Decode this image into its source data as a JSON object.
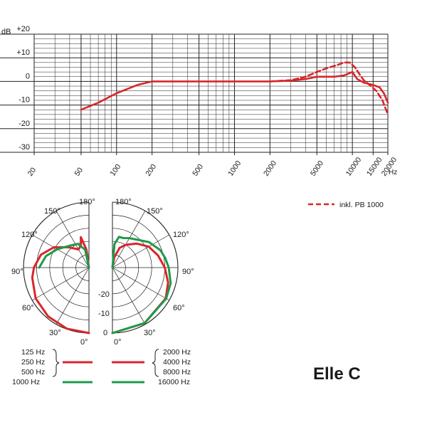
{
  "chart_data": [
    {
      "type": "line",
      "x_scale": "log",
      "xlim": [
        20,
        20000
      ],
      "ylim": [
        -30,
        20
      ],
      "x_unit": "Hz",
      "y_unit": "dB",
      "grid": true,
      "x_ticks": [
        {
          "v": 20,
          "label": "20"
        },
        {
          "v": 50,
          "label": "50"
        },
        {
          "v": 100,
          "label": "100"
        },
        {
          "v": 200,
          "label": "200"
        },
        {
          "v": 500,
          "label": "500"
        },
        {
          "v": 1000,
          "label": "1000"
        },
        {
          "v": 2000,
          "label": "2000"
        },
        {
          "v": 5000,
          "label": "5000"
        },
        {
          "v": 10000,
          "label": "10000"
        },
        {
          "v": 15000,
          "label": "15000"
        },
        {
          "v": 20000,
          "label": "20000"
        }
      ],
      "y_ticks": [
        {
          "v": 20,
          "label": "+20"
        },
        {
          "v": 10,
          "label": "+10"
        },
        {
          "v": 0,
          "label": "0"
        },
        {
          "v": -10,
          "label": "-10"
        },
        {
          "v": -20,
          "label": "-20"
        },
        {
          "v": -30,
          "label": "-30"
        }
      ],
      "series": [
        {
          "name": "",
          "color": "#d8262b",
          "style": "solid",
          "points": [
            [
              50,
              -12
            ],
            [
              70,
              -9
            ],
            [
              100,
              -5
            ],
            [
              150,
              -1.5
            ],
            [
              200,
              0
            ],
            [
              500,
              0
            ],
            [
              1000,
              0
            ],
            [
              2000,
              0
            ],
            [
              3000,
              0.3
            ],
            [
              4000,
              1
            ],
            [
              5000,
              2
            ],
            [
              7000,
              2
            ],
            [
              8500,
              2.5
            ],
            [
              10000,
              4
            ],
            [
              11000,
              1
            ],
            [
              12500,
              -0.5
            ],
            [
              15000,
              -1.5
            ],
            [
              17000,
              -2.5
            ],
            [
              18500,
              -5
            ],
            [
              20000,
              -9
            ]
          ]
        },
        {
          "name": "inkl. PB 1000",
          "color": "#d8262b",
          "style": "dashed",
          "points": [
            [
              2000,
              0
            ],
            [
              3000,
              0.5
            ],
            [
              4000,
              2
            ],
            [
              5000,
              4
            ],
            [
              6000,
              5.5
            ],
            [
              7500,
              7
            ],
            [
              8500,
              8
            ],
            [
              9500,
              8
            ],
            [
              10500,
              6
            ],
            [
              11500,
              3
            ],
            [
              12500,
              0.5
            ],
            [
              14000,
              -1.5
            ],
            [
              16000,
              -4
            ],
            [
              18000,
              -8
            ],
            [
              20000,
              -14
            ]
          ]
        }
      ],
      "legend": {
        "label": "inkl. PB 1000",
        "position": "right"
      }
    },
    {
      "type": "polar",
      "angle_labels": {
        "a180": "180°",
        "a150": "150°",
        "a120": "120°",
        "a90": "90°",
        "a60": "60°",
        "a30": "30°",
        "a0": "0°"
      },
      "ring_labels": [
        "0",
        "-10",
        "-20"
      ],
      "r_range_db": [
        -25,
        0
      ],
      "halves": [
        {
          "side": "left",
          "series": [
            {
              "group": "low",
              "color": "#d8262b",
              "points_db": [
                [
                  0,
                  0
                ],
                [
                  20,
                  -0.2
                ],
                [
                  40,
                  -0.7
                ],
                [
                  60,
                  -1.5
                ],
                [
                  80,
                  -3
                ],
                [
                  90,
                  -4
                ],
                [
                  105,
                  -6
                ],
                [
                  120,
                  -9.5
                ],
                [
                  135,
                  -14
                ],
                [
                  150,
                  -17
                ],
                [
                  160,
                  -16
                ],
                [
                  165,
                  -13
                ],
                [
                  172,
                  -18
                ],
                [
                  180,
                  -25
                ]
              ]
            },
            {
              "group": "1000",
              "color": "#1e9a4a",
              "points_db": [
                [
                  90,
                  -6
                ],
                [
                  105,
                  -8
                ],
                [
                  120,
                  -11
                ],
                [
                  140,
                  -14
                ],
                [
                  155,
                  -15
                ],
                [
                  168,
                  -18
                ],
                [
                  180,
                  -25
                ]
              ]
            }
          ]
        },
        {
          "side": "right",
          "series": [
            {
              "group": "high",
              "color": "#d8262b",
              "points_db": [
                [
                  0,
                  0
                ],
                [
                  30,
                  -0.5
                ],
                [
                  60,
                  -1.5
                ],
                [
                  75,
                  -3
                ],
                [
                  90,
                  -5
                ],
                [
                  105,
                  -7
                ],
                [
                  120,
                  -9
                ],
                [
                  135,
                  -12
                ],
                [
                  150,
                  -15
                ],
                [
                  160,
                  -17
                ],
                [
                  170,
                  -21
                ],
                [
                  180,
                  -25
                ]
              ]
            },
            {
              "group": "16000",
              "color": "#1e9a4a",
              "points_db": [
                [
                  0,
                  0
                ],
                [
                  30,
                  -0.5
                ],
                [
                  60,
                  -1.3
                ],
                [
                  75,
                  -2
                ],
                [
                  90,
                  -3.5
                ],
                [
                  100,
                  -4.5
                ],
                [
                  110,
                  -5.5
                ],
                [
                  125,
                  -8
                ],
                [
                  140,
                  -11
                ],
                [
                  150,
                  -12
                ],
                [
                  160,
                  -13
                ],
                [
                  168,
                  -13
                ],
                [
                  175,
                  -16
                ],
                [
                  180,
                  -25
                ]
              ]
            }
          ]
        }
      ]
    }
  ],
  "polar_legend": {
    "left": [
      "125 Hz",
      "250 Hz",
      "500 Hz",
      "1000 Hz"
    ],
    "right": [
      "2000 Hz",
      "4000 Hz",
      "8000 Hz",
      "16000 Hz"
    ],
    "red_color": "#d8262b",
    "green_color": "#1e9a4a"
  },
  "title": "Elle C"
}
